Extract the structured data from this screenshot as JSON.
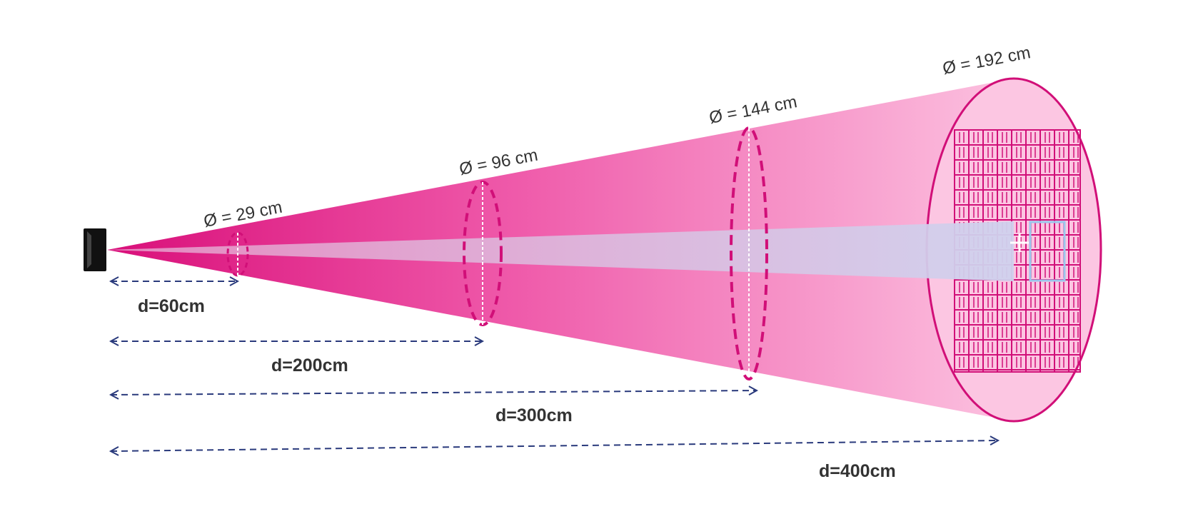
{
  "diameter_labels": {
    "d60": "Ø = 29 cm",
    "d200": "Ø = 96 cm",
    "d300": "Ø = 144 cm",
    "d400": "Ø = 192 cm"
  },
  "distance_labels": {
    "d60": "d=60cm",
    "d200": "d=200cm",
    "d300": "d=300cm",
    "d400": "d=400cm"
  },
  "colors": {
    "cone_dark": "#e0147f",
    "cone_light": "#fbc6e2",
    "beam": "#d6c7e6",
    "ring": "#d10f78",
    "arrow": "#2a3a7c",
    "target_box": "#9cc6ec"
  },
  "icons": {
    "sensor": "sensor-device-icon",
    "target": "target-box-icon"
  }
}
